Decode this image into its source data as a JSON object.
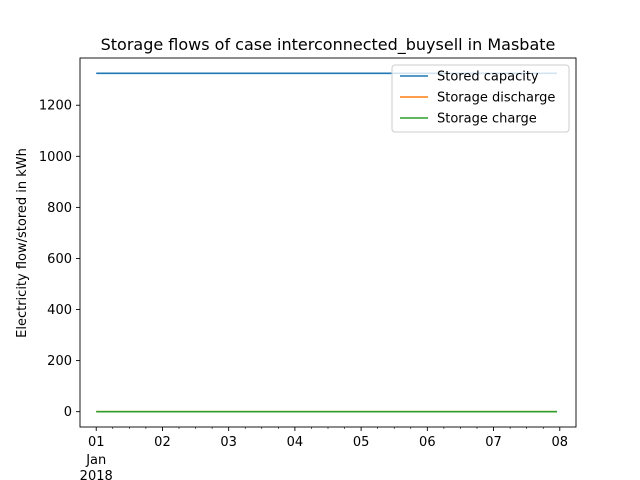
{
  "chart_data": {
    "type": "line",
    "title": "Storage flows of case interconnected_buysell in Masbate",
    "xlabel": "",
    "ylabel": "Electricity flow/stored in kWh",
    "x_ticks": [
      "01",
      "02",
      "03",
      "04",
      "05",
      "06",
      "07",
      "08"
    ],
    "x_tick_secondary": [
      "Jan",
      "2018"
    ],
    "x_range": [
      "2018-01-01",
      "2018-01-08"
    ],
    "x_data_range": [
      "2018-01-01 00:00",
      "2018-01-07 23:00"
    ],
    "yticks": [
      0,
      200,
      400,
      600,
      800,
      1000,
      1200
    ],
    "ylim": [
      -60,
      1385
    ],
    "grid": false,
    "legend_position": "top-right",
    "series": [
      {
        "name": "Stored capacity",
        "color": "#1f77b4",
        "x": [
          "2018-01-01 00:00",
          "2018-01-07 23:00"
        ],
        "values": [
          1325,
          1325
        ]
      },
      {
        "name": "Storage discharge",
        "color": "#ff7f0e",
        "x": [
          "2018-01-01 00:00",
          "2018-01-07 23:00"
        ],
        "values": [
          0,
          0
        ]
      },
      {
        "name": "Storage charge",
        "color": "#2ca02c",
        "x": [
          "2018-01-01 00:00",
          "2018-01-07 23:00"
        ],
        "values": [
          0,
          0
        ]
      }
    ]
  }
}
